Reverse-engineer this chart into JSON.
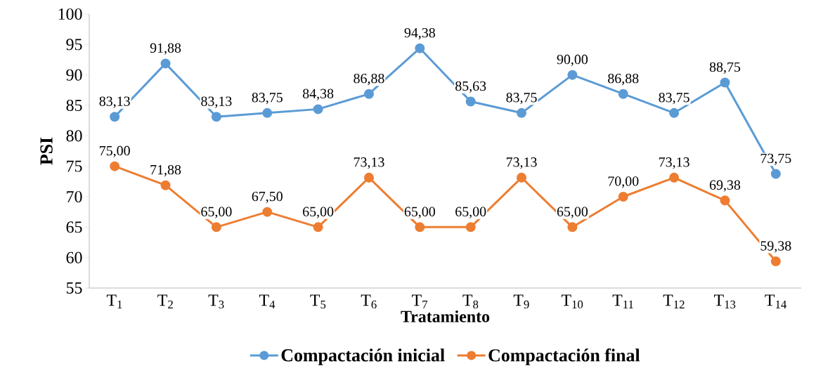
{
  "chart_data": {
    "type": "line",
    "xlabel": "Tratamiento",
    "ylabel": "PSI",
    "categories": [
      "T$_{1}$",
      "T$_{2}$",
      "T$_{3}$",
      "T$_{4}$",
      "T$_{5}$",
      "T$_{6}$",
      "T$_{7}$",
      "T$_{8}$",
      "T$_{9}$",
      "T$_{10}$",
      "T$_{11}$",
      "T$_{12}$",
      "T$_{13}$",
      "T$_{14}$"
    ],
    "ylim": [
      55,
      100
    ],
    "yticks": [
      55,
      60,
      65,
      70,
      75,
      80,
      85,
      90,
      95,
      100
    ],
    "legend": "bottom",
    "marker": "circle",
    "line_style": "solid",
    "series": [
      {
        "name": "Compactación inicial",
        "color": "#5b9bd5",
        "values": [
          83.13,
          91.88,
          83.13,
          83.75,
          84.38,
          86.88,
          94.38,
          85.63,
          83.75,
          90.0,
          86.88,
          83.75,
          88.75,
          73.75
        ],
        "value_labels": [
          "83,13",
          "91,88",
          "83,13",
          "83,75",
          "84,38",
          "86,88",
          "94,38",
          "85,63",
          "83,75",
          "90,00",
          "86,88",
          "83,75",
          "88,75",
          "73,75"
        ]
      },
      {
        "name": "Compactación final",
        "color": "#ed7d31",
        "values": [
          75.0,
          71.88,
          65.0,
          67.5,
          65.0,
          73.13,
          65.0,
          65.0,
          73.13,
          65.0,
          70.0,
          73.13,
          69.38,
          59.38
        ],
        "value_labels": [
          "75,00",
          "71,88",
          "65,00",
          "67,50",
          "65,00",
          "73,13",
          "65,00",
          "65,00",
          "73,13",
          "65,00",
          "70,00",
          "73,13",
          "69,38",
          "59,38"
        ]
      }
    ]
  }
}
